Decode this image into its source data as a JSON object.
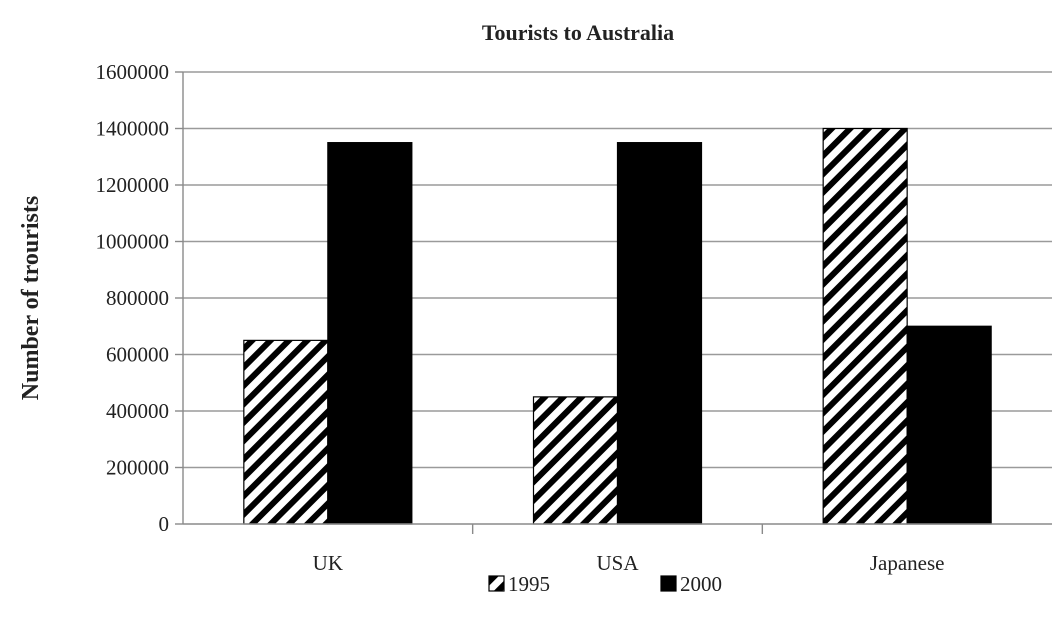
{
  "chart_data": {
    "type": "bar",
    "title": "Tourists to Australia",
    "xlabel": "",
    "ylabel": "Number of trourists",
    "categories": [
      "UK",
      "USA",
      "Japanese"
    ],
    "series": [
      {
        "name": "1995",
        "values": [
          650000,
          450000,
          1400000
        ],
        "pattern": "diagonal-hatch",
        "color": "#000000"
      },
      {
        "name": "2000",
        "values": [
          1350000,
          1350000,
          700000
        ],
        "pattern": "solid",
        "color": "#000000"
      }
    ],
    "ylim": [
      0,
      1600000
    ],
    "yticks": [
      0,
      200000,
      400000,
      600000,
      800000,
      1000000,
      1200000,
      1400000,
      1600000
    ],
    "grid": true,
    "legend_position": "bottom-center"
  }
}
